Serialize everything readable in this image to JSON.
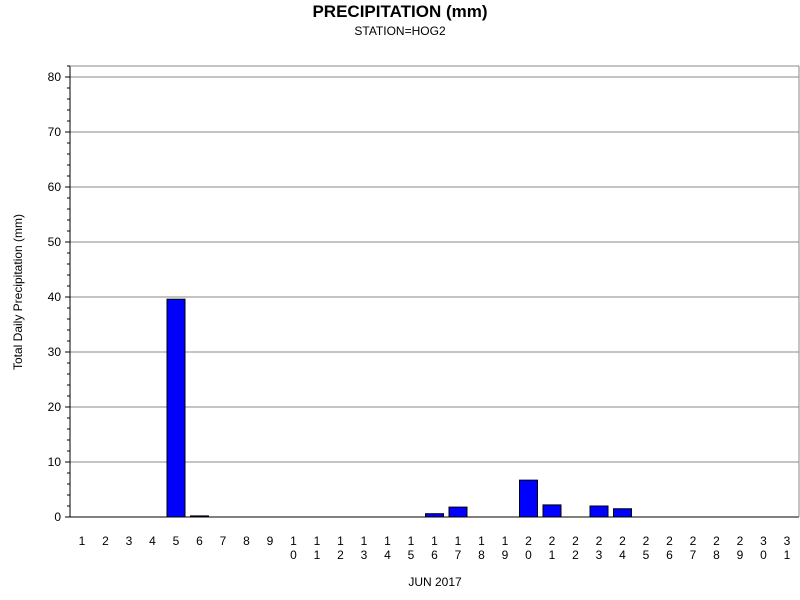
{
  "chart_data": {
    "type": "bar",
    "title": "PRECIPITATION (mm)",
    "subtitle": "STATION=HOG2",
    "xlabel": "JUN 2017",
    "ylabel": "Total Daily Precipitation (mm)",
    "ylim": [
      0,
      82
    ],
    "yticks": [
      0,
      10,
      20,
      30,
      40,
      50,
      60,
      70,
      80
    ],
    "grid": true,
    "bar_color": "#0000ff",
    "categories": [
      "1",
      "2",
      "3",
      "4",
      "5",
      "6",
      "7",
      "8",
      "9",
      "10",
      "11",
      "12",
      "13",
      "14",
      "15",
      "16",
      "17",
      "18",
      "19",
      "20",
      "21",
      "22",
      "23",
      "24",
      "25",
      "26",
      "27",
      "28",
      "29",
      "30",
      "31"
    ],
    "values": [
      0,
      0,
      0,
      0,
      39.6,
      0.2,
      0,
      0,
      0,
      0,
      0,
      0,
      0,
      0,
      0,
      0.6,
      1.8,
      0,
      0,
      6.7,
      2.2,
      0,
      2.0,
      1.5,
      0,
      0,
      0,
      0,
      0,
      0,
      0
    ]
  }
}
